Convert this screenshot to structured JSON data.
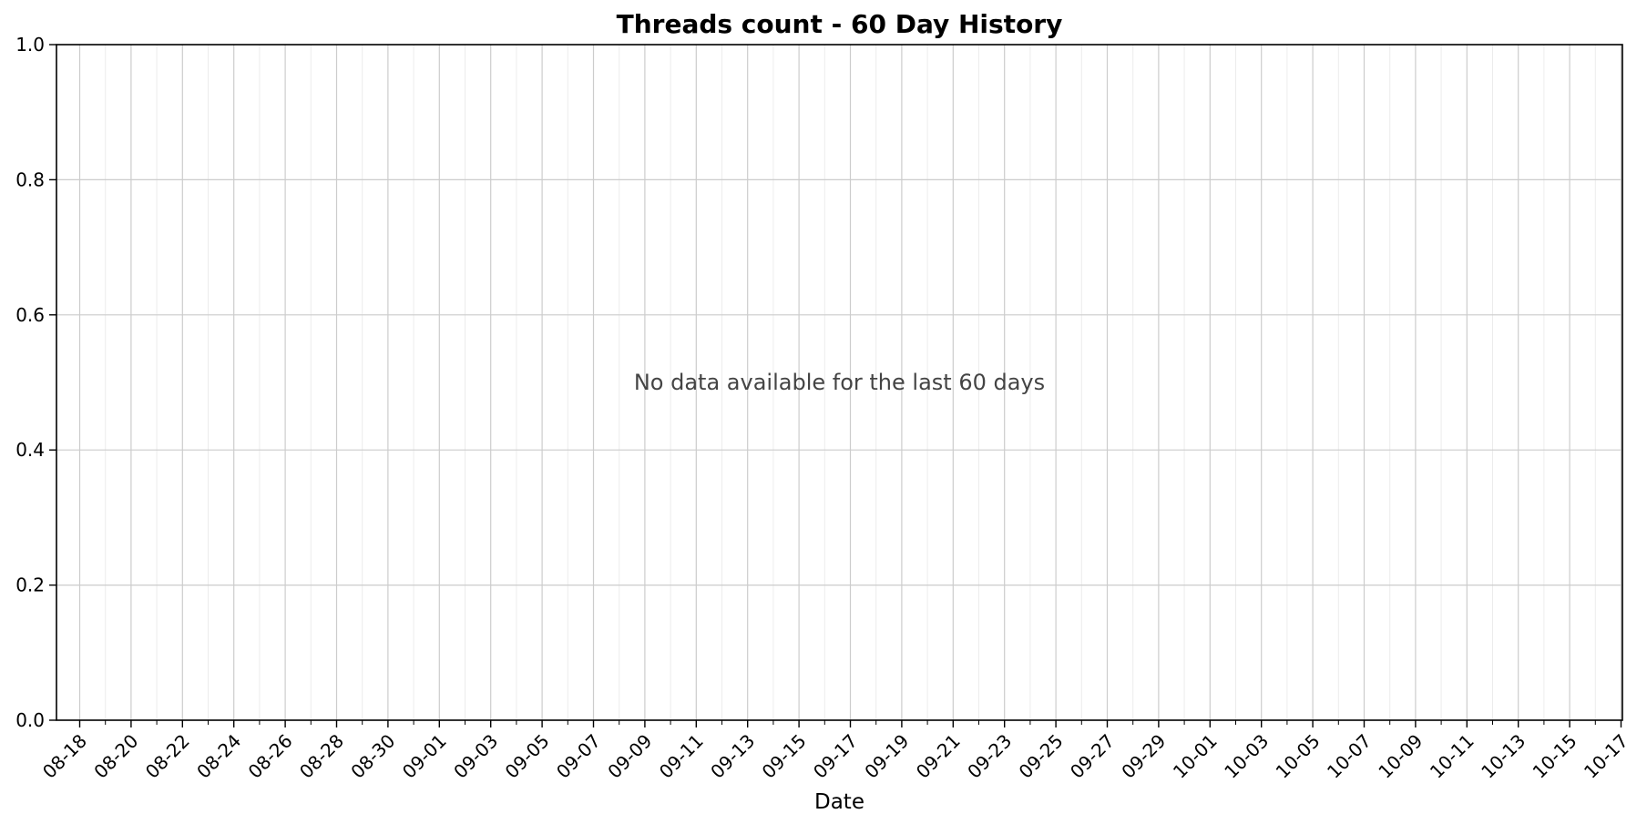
{
  "chart_data": {
    "type": "line",
    "title": "Threads count - 60 Day History",
    "xlabel": "Date",
    "ylabel": "",
    "annotation": "No data available for the last 60 days",
    "x_range": [
      "08-17",
      "10-17"
    ],
    "major_x_ticks": [
      "08-18",
      "08-20",
      "08-22",
      "08-24",
      "08-26",
      "08-28",
      "08-30",
      "09-01",
      "09-03",
      "09-05",
      "09-07",
      "09-09",
      "09-11",
      "09-13",
      "09-15",
      "09-17",
      "09-19",
      "09-21",
      "09-23",
      "09-25",
      "09-27",
      "09-29",
      "10-01",
      "10-03",
      "10-05",
      "10-07",
      "10-09",
      "10-11",
      "10-13",
      "10-15",
      "10-17"
    ],
    "minor_x_ticks": [
      "08-19",
      "08-21",
      "08-23",
      "08-25",
      "08-27",
      "08-29",
      "08-31",
      "09-02",
      "09-04",
      "09-06",
      "09-08",
      "09-10",
      "09-12",
      "09-14",
      "09-16",
      "09-18",
      "09-20",
      "09-22",
      "09-24",
      "09-26",
      "09-28",
      "09-30",
      "10-02",
      "10-04",
      "10-06",
      "10-08",
      "10-10",
      "10-12",
      "10-14",
      "10-16"
    ],
    "y_ticks": [
      "0.0",
      "0.2",
      "0.4",
      "0.6",
      "0.8",
      "1.0"
    ],
    "ylim": [
      0,
      1
    ],
    "series": [],
    "grid": true,
    "major_grid_color": "#cccccc",
    "minor_grid_color": "#ececec"
  }
}
